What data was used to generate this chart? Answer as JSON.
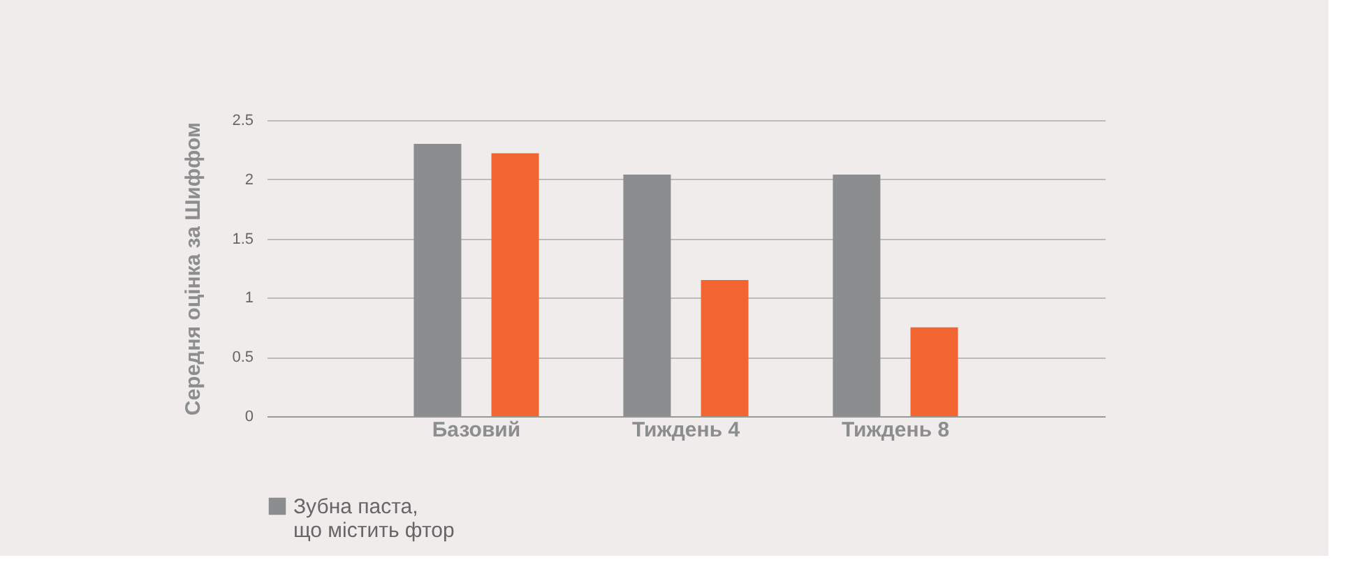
{
  "chart_data": {
    "type": "bar",
    "ylabel": "Середня оцінка за Шиффом",
    "categories": [
      "Базовий",
      "Тиждень 4",
      "Тиждень 8"
    ],
    "series": [
      {
        "color": "#8c8d8f",
        "values": [
          2.3,
          2.04,
          2.04
        ],
        "name": "Зубна паста,\nщо містить фтор"
      },
      {
        "color": "#f26531",
        "values": [
          2.22,
          1.15,
          0.75
        ]
      }
    ],
    "ylim": [
      0,
      2.5
    ],
    "yticks": [
      0,
      0.5,
      1,
      1.5,
      2,
      2.5
    ],
    "grid": "y",
    "legend": "bottom"
  }
}
